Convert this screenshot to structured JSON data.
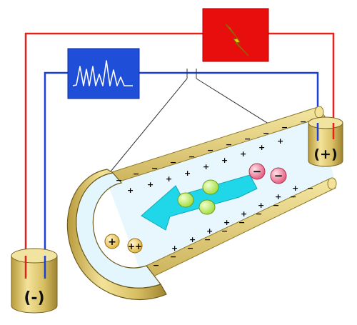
{
  "colors": {
    "wire_positive": "#e8201c",
    "wire_negative": "#1a3fd6",
    "power_box": "#e80e0e",
    "bolt": "#f5c800",
    "detector_box": "#1f4ed8",
    "vial": "#d9c36a",
    "tube_outer": "#e9d583",
    "tube_inner": "#dff3fb",
    "flow_arrow": "#1fd7e8",
    "neutral_ion": "#b9f05a",
    "negative_ion": "#f07a9a",
    "positive_ion": "#f2c44b"
  },
  "vials": {
    "anode_label": "(+)",
    "cathode_label": "(-)"
  },
  "icons": {
    "power_supply": "high-voltage-bolt-icon",
    "detector": "electropherogram-peaks-icon"
  },
  "ions": {
    "negative_symbol": "−",
    "positive_symbol": "+",
    "double_positive_symbol": "++"
  },
  "wall_charges": {
    "wall_symbol": "−",
    "counter_symbol": "+"
  }
}
